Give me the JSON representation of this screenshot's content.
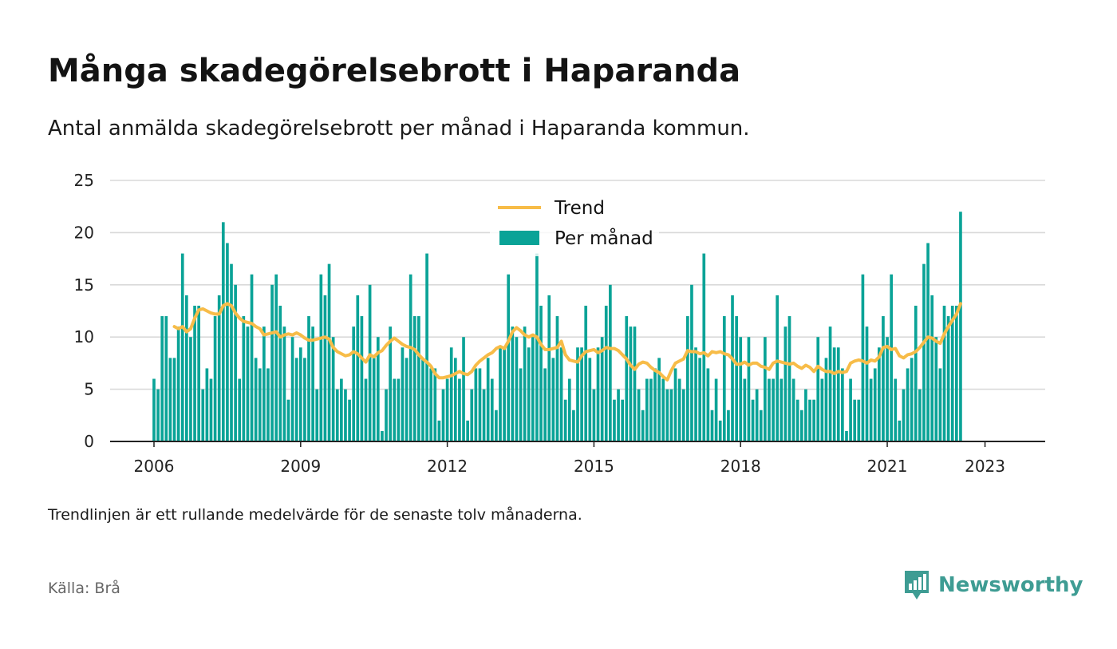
{
  "title": "Många skadegörelsebrott i Haparanda",
  "subtitle": "Antal anmälda skadegörelsebrott per månad i Haparanda kommun.",
  "note": "Trendlinjen är ett rullande medelvärde för de senaste tolv månaderna.",
  "source": "Källa: Brå",
  "brand": "Newsworthy",
  "colors": {
    "bar": "#0aa397",
    "trend": "#f7bc48",
    "grid": "#d9d9d9",
    "axis": "#222222",
    "brand": "#3e9c93"
  },
  "chart_data": {
    "type": "bar",
    "x_start": "2006-01",
    "x_end": "2023-05",
    "x_ticks": [
      "2006",
      "2009",
      "2012",
      "2015",
      "2018",
      "2021",
      "2023"
    ],
    "y_ticks": [
      "0",
      "5",
      "10",
      "15",
      "20",
      "25"
    ],
    "ylim": [
      0,
      25
    ],
    "legend": {
      "placement": "top-center",
      "items": [
        {
          "label": "Trend",
          "kind": "line"
        },
        {
          "label": "Per månad",
          "kind": "bar"
        }
      ]
    },
    "series": [
      {
        "name": "Per månad",
        "kind": "bar",
        "values": [
          6,
          5,
          12,
          12,
          8,
          8,
          11,
          18,
          14,
          10,
          13,
          13,
          5,
          7,
          6,
          12,
          14,
          21,
          19,
          17,
          15,
          6,
          12,
          11,
          16,
          8,
          7,
          11,
          7,
          15,
          16,
          13,
          11,
          4,
          10,
          8,
          9,
          8,
          12,
          11,
          5,
          16,
          14,
          17,
          10,
          5,
          6,
          5,
          4,
          11,
          14,
          12,
          6,
          15,
          8,
          10,
          1,
          5,
          11,
          6,
          6,
          9,
          8,
          16,
          12,
          12,
          8,
          18,
          7,
          7,
          2,
          5,
          6,
          9,
          8,
          6,
          10,
          2,
          5,
          7,
          7,
          5,
          8,
          6,
          3,
          9,
          9,
          16,
          11,
          10,
          7,
          11,
          9,
          10,
          18,
          13,
          7,
          14,
          8,
          12,
          9,
          4,
          6,
          3,
          9,
          9,
          13,
          8,
          5,
          9,
          10,
          13,
          15,
          4,
          5,
          4,
          12,
          11,
          11,
          5,
          3,
          6,
          6,
          7,
          8,
          6,
          5,
          5,
          7,
          6,
          5,
          12,
          15,
          9,
          8,
          18,
          7,
          3,
          6,
          2,
          12,
          3,
          14,
          12,
          10,
          6,
          10,
          4,
          5,
          3,
          10,
          6,
          6,
          14,
          6,
          11,
          12,
          6,
          4,
          3,
          5,
          4,
          4,
          10,
          6,
          8,
          11,
          9,
          9,
          7,
          1,
          6,
          4,
          4,
          16,
          11,
          6,
          7,
          9,
          12,
          10,
          16,
          6,
          2,
          5,
          7,
          8,
          13,
          5,
          17,
          19,
          14,
          10,
          7,
          13,
          12,
          13,
          13,
          22
        ]
      },
      {
        "name": "Trend",
        "kind": "line",
        "values": [
          11,
          10.8,
          11,
          10.5,
          10.8,
          11.8,
          12.6,
          12.7,
          12.5,
          12.3,
          12.2,
          12.2,
          13,
          13.2,
          13,
          12.3,
          11.8,
          11.5,
          11.4,
          11.3,
          11,
          10.8,
          10.2,
          10.3,
          10.4,
          10.5,
          10,
          10.2,
          10.3,
          10.2,
          10.4,
          10.2,
          9.9,
          9.7,
          9.7,
          9.8,
          9.9,
          10,
          9.8,
          9,
          8.6,
          8.4,
          8.2,
          8.3,
          8.6,
          8.4,
          8,
          7.6,
          8.3,
          8.1,
          8.5,
          8.7,
          9.2,
          9.6,
          9.9,
          9.6,
          9.3,
          9.1,
          9,
          8.8,
          8.3,
          7.9,
          7.6,
          7.2,
          6.5,
          6.1,
          6.1,
          6.2,
          6.3,
          6.5,
          6.7,
          6.5,
          6.4,
          6.7,
          7.3,
          7.7,
          8,
          8.3,
          8.5,
          8.9,
          9.1,
          8.9,
          9.6,
          10.5,
          10.9,
          10.6,
          10.2,
          10,
          10.2,
          10,
          9.3,
          8.8,
          8.8,
          8.9,
          9,
          9.6,
          8.3,
          7.8,
          7.7,
          7.6,
          8.2,
          8.6,
          8.7,
          8.8,
          8.5,
          8.7,
          9,
          8.9,
          8.9,
          8.7,
          8.3,
          7.9,
          7.3,
          6.9,
          7.4,
          7.6,
          7.5,
          7.1,
          6.8,
          6.6,
          6.2,
          5.9,
          6.8,
          7.5,
          7.7,
          7.9,
          8.7,
          8.6,
          8.6,
          8.4,
          8.5,
          8.2,
          8.6,
          8.5,
          8.6,
          8.4,
          8.3,
          7.9,
          7.4,
          7.4,
          7.6,
          7.3,
          7.5,
          7.5,
          7.2,
          7.1,
          6.9,
          7.5,
          7.7,
          7.6,
          7.5,
          7.4,
          7.5,
          7.2,
          7,
          7.3,
          7.1,
          6.7,
          7.2,
          6.9,
          6.7,
          6.7,
          6.5,
          6.7,
          6.6,
          6.7,
          7.5,
          7.7,
          7.8,
          7.7,
          7.5,
          7.8,
          7.7,
          8.1,
          9,
          9.1,
          8.8,
          8.9,
          8.2,
          8,
          8.3,
          8.4,
          8.6,
          9,
          9.5,
          10,
          9.9,
          9.6,
          9.4,
          10.3,
          11,
          11.6,
          12.2,
          13.2
        ]
      }
    ]
  }
}
